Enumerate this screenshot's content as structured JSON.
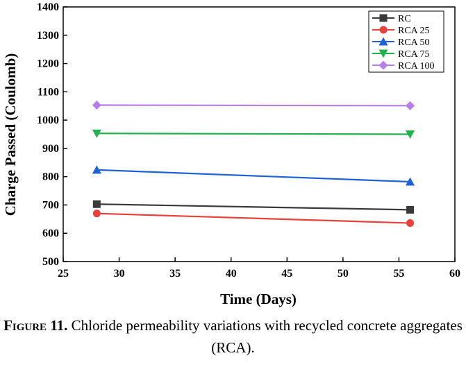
{
  "chart_data": {
    "type": "line",
    "title": "",
    "xlabel": "Time (Days)",
    "ylabel": "Charge Passed (Coulomb)",
    "xlim": [
      25,
      60
    ],
    "ylim": [
      500,
      1400
    ],
    "xticks": [
      25,
      30,
      35,
      40,
      45,
      50,
      55,
      60
    ],
    "yticks": [
      500,
      600,
      700,
      800,
      900,
      1000,
      1100,
      1200,
      1300,
      1400
    ],
    "grid": false,
    "legend_position": "top-right",
    "x": [
      28,
      56
    ],
    "series": [
      {
        "name": "RC",
        "values": [
          703,
          683
        ],
        "color": "#3a3a3a",
        "marker": "square"
      },
      {
        "name": "RCA 25",
        "values": [
          670,
          636
        ],
        "color": "#e8403a",
        "marker": "circle"
      },
      {
        "name": "RCA 50",
        "values": [
          824,
          782
        ],
        "color": "#1f62d6",
        "marker": "triangle-up"
      },
      {
        "name": "RCA 75",
        "values": [
          953,
          950
        ],
        "color": "#22b14c",
        "marker": "triangle-down"
      },
      {
        "name": "RCA 100",
        "values": [
          1053,
          1051
        ],
        "color": "#b77de8",
        "marker": "diamond"
      }
    ]
  },
  "caption": {
    "label": "Figure 11.",
    "text": " Chloride permeability variations with recycled concrete aggregates (RCA)."
  }
}
